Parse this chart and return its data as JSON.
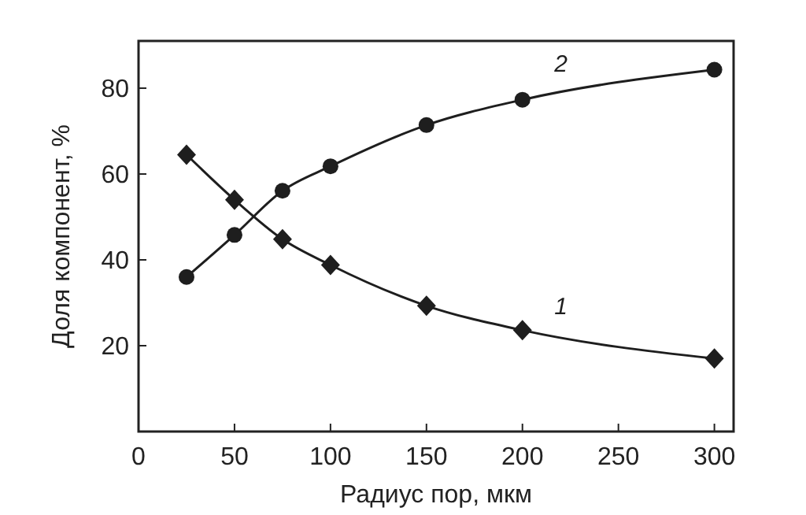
{
  "chart_data": {
    "type": "line",
    "xlabel": "Радиус пор, мкм",
    "ylabel": "Доля компонент, %",
    "x": [
      25,
      50,
      75,
      100,
      150,
      200,
      300
    ],
    "series": [
      {
        "name": "1",
        "color": "#1e1e1e",
        "marker": "diamond",
        "values": [
          64.5,
          54,
          44.8,
          38.8,
          29.3,
          23.6,
          17
        ]
      },
      {
        "name": "2",
        "color": "#1e1e1e",
        "marker": "circle",
        "values": [
          36,
          45.8,
          56.1,
          61.8,
          71.4,
          77.3,
          84.3
        ]
      }
    ],
    "xlim": [
      0,
      310
    ],
    "xticks": [
      0,
      50,
      100,
      150,
      200,
      250,
      300
    ],
    "ylim": [
      0,
      91
    ],
    "yticks": [
      20,
      40,
      60,
      80
    ],
    "grid": false,
    "line_style": "solid"
  }
}
